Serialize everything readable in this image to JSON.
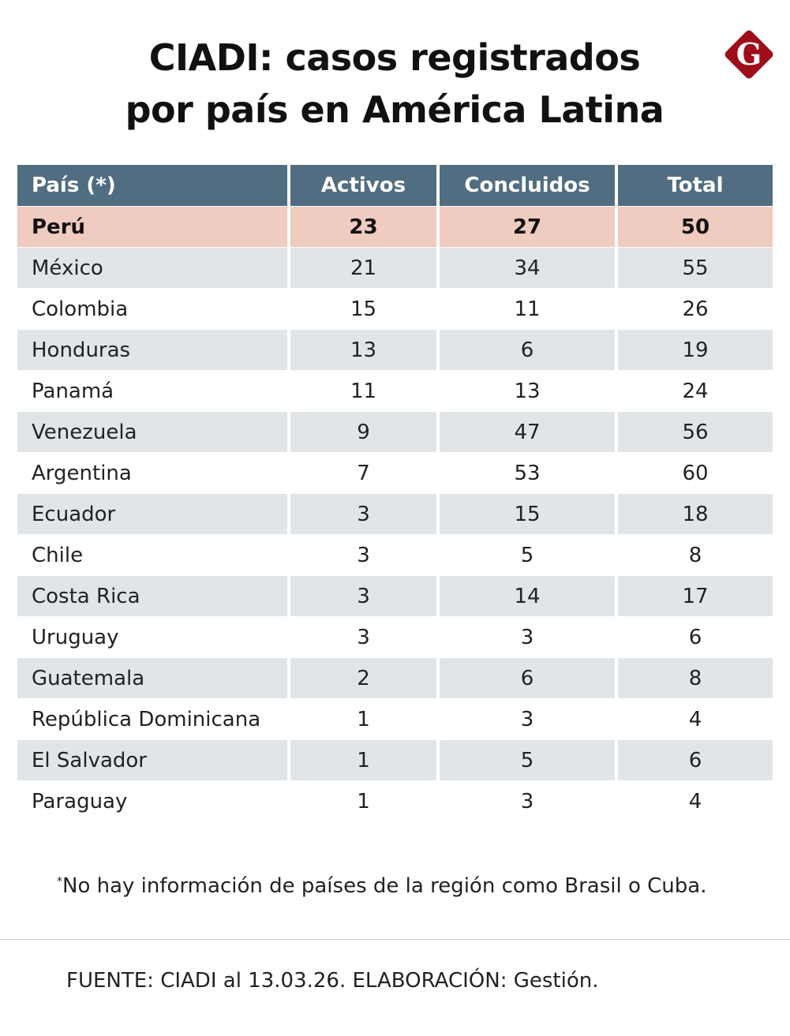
{
  "title": {
    "line1": "CIADI: casos registrados",
    "line2": "por país en América Latina"
  },
  "logo": {
    "letter": "G",
    "color": "#a00d1a"
  },
  "colors": {
    "header": "#506d82",
    "highlight": "#f0cbc0",
    "stripe": "#e1e5e8"
  },
  "table": {
    "headers": [
      "País (*)",
      "Activos",
      "Concluidos",
      "Total"
    ],
    "rows": [
      [
        "Perú",
        "23",
        "27",
        "50"
      ],
      [
        "México",
        "21",
        "34",
        "55"
      ],
      [
        "Colombia",
        "15",
        "11",
        "26"
      ],
      [
        "Honduras",
        "13",
        "6",
        "19"
      ],
      [
        "Panamá",
        "11",
        "13",
        "24"
      ],
      [
        "Venezuela",
        "9",
        "47",
        "56"
      ],
      [
        "Argentina",
        "7",
        "53",
        "60"
      ],
      [
        "Ecuador",
        "3",
        "15",
        "18"
      ],
      [
        "Chile",
        "3",
        "5",
        "8"
      ],
      [
        "Costa Rica",
        "3",
        "14",
        "17"
      ],
      [
        "Uruguay",
        "3",
        "3",
        "6"
      ],
      [
        "Guatemala",
        "2",
        "6",
        "8"
      ],
      [
        "República Dominicana",
        "1",
        "3",
        "4"
      ],
      [
        "El Salvador",
        "1",
        "5",
        "6"
      ],
      [
        "Paraguay",
        "1",
        "3",
        "4"
      ]
    ]
  },
  "footnote": {
    "mark": "*",
    "text": "No hay información de países de la región como Brasil o Cuba."
  },
  "source": "FUENTE: CIADI al 13.03.26. ELABORACIÓN: Gestión."
}
